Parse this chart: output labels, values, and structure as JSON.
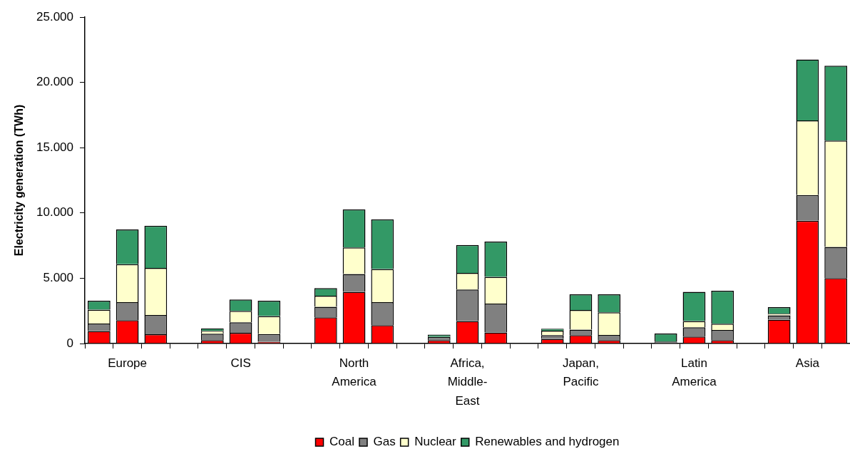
{
  "chart_data": {
    "type": "bar",
    "stacked": true,
    "ylabel": "Electricity generation (TWh)",
    "categories": [
      null,
      "Europe",
      null,
      null,
      null,
      "CIS",
      null,
      null,
      null,
      "North America",
      null,
      null,
      null,
      "Africa, Middle-East",
      null,
      null,
      null,
      "Japan, Pacific",
      null,
      null,
      null,
      "Latin America",
      null,
      null,
      null,
      "Asia",
      null
    ],
    "series": [
      {
        "name": "Coal",
        "color": "#ff0000",
        "values": [
          950,
          1790,
          710,
          null,
          260,
          820,
          130,
          null,
          2010,
          3960,
          1400,
          null,
          260,
          1720,
          840,
          null,
          350,
          640,
          260,
          null,
          0,
          530,
          260,
          null,
          1830,
          9400,
          5010
        ]
      },
      {
        "name": "Gas",
        "color": "#808080",
        "values": [
          580,
          1380,
          1480,
          null,
          490,
          800,
          600,
          null,
          800,
          1360,
          1770,
          null,
          240,
          2420,
          2220,
          null,
          290,
          420,
          400,
          null,
          150,
          710,
          780,
          null,
          320,
          1970,
          2390
        ]
      },
      {
        "name": "Nuclear",
        "color": "#ffffcc",
        "values": [
          1060,
          2900,
          3600,
          null,
          220,
          880,
          1370,
          null,
          850,
          2040,
          2530,
          null,
          0,
          1270,
          2040,
          null,
          340,
          1510,
          1730,
          null,
          0,
          480,
          470,
          null,
          130,
          5720,
          8140
        ]
      },
      {
        "name": "Renewables and hydrogen",
        "color": "#339966",
        "values": [
          690,
          2670,
          3230,
          null,
          180,
          870,
          1180,
          null,
          590,
          2910,
          3810,
          null,
          180,
          2130,
          2710,
          null,
          150,
          1200,
          1380,
          null,
          620,
          2240,
          2530,
          null,
          510,
          4660,
          5740
        ]
      }
    ],
    "ylim": [
      0,
      25000
    ],
    "yticks": [
      0,
      {
        "value": 5000,
        "label": "5.000"
      },
      {
        "value": 10000,
        "label": "10.000"
      },
      {
        "value": 15000,
        "label": "15.000"
      },
      {
        "value": 20000,
        "label": "20.000"
      },
      {
        "value": 25000,
        "label": "25.000"
      }
    ],
    "grid": false,
    "legend": "bottom"
  }
}
